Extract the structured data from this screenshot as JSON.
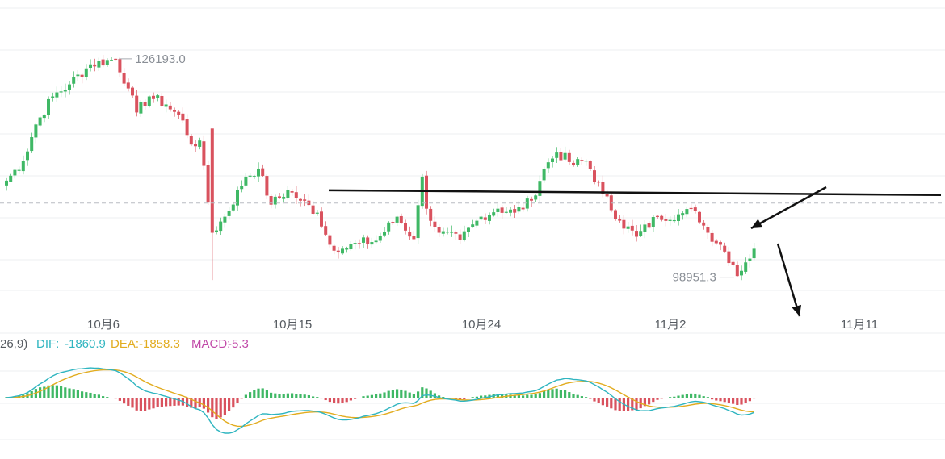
{
  "chart_data": [
    {
      "type": "candlestick",
      "title": "",
      "x_tick_labels": [
        "10月6",
        "10月15",
        "10月24",
        "11月2",
        "11月11"
      ],
      "price_range": [
        96000,
        129500
      ],
      "annotations": {
        "high_value": "126193.0",
        "low_value": "98951.3",
        "reference_price": 108200,
        "support_line": {
          "from_price": 109800,
          "to_price": 109200
        },
        "arrows": [
          "pointing to support line",
          "pointing down"
        ]
      },
      "colors": {
        "up": "#3fb865",
        "down": "#d9525e",
        "line": "#111111",
        "guide": "#b8bcc2"
      },
      "waypoints": [
        [
          0,
          111000
        ],
        [
          4,
          113500
        ],
        [
          7,
          118000
        ],
        [
          11,
          121500
        ],
        [
          15,
          123000
        ],
        [
          20,
          125500
        ],
        [
          26,
          126193
        ],
        [
          29,
          122500
        ],
        [
          31,
          119500
        ],
        [
          34,
          121500
        ],
        [
          38,
          120500
        ],
        [
          42,
          118500
        ],
        [
          44,
          115500
        ],
        [
          46,
          116000
        ],
        [
          49,
          104500
        ],
        [
          52,
          106500
        ],
        [
          57,
          111500
        ],
        [
          60,
          112500
        ],
        [
          63,
          108000
        ],
        [
          67,
          109800
        ],
        [
          70,
          108500
        ],
        [
          74,
          107000
        ],
        [
          77,
          103000
        ],
        [
          80,
          102500
        ],
        [
          84,
          103200
        ],
        [
          88,
          103500
        ],
        [
          93,
          106500
        ],
        [
          97,
          103700
        ],
        [
          99,
          111500
        ],
        [
          100,
          107500
        ],
        [
          103,
          104500
        ],
        [
          108,
          103600
        ],
        [
          113,
          106500
        ],
        [
          117,
          107500
        ],
        [
          121,
          107000
        ],
        [
          125,
          108500
        ],
        [
          128,
          112500
        ],
        [
          131,
          114500
        ],
        [
          135,
          113000
        ],
        [
          138,
          113500
        ],
        [
          142,
          109300
        ],
        [
          146,
          106000
        ],
        [
          150,
          104000
        ],
        [
          155,
          106500
        ],
        [
          160,
          106800
        ],
        [
          164,
          107200
        ],
        [
          167,
          104500
        ],
        [
          170,
          103000
        ],
        [
          173,
          100500
        ],
        [
          174,
          99100
        ],
        [
          176,
          100800
        ],
        [
          178,
          102500
        ]
      ]
    },
    {
      "type": "macd",
      "params_label": "26,9)",
      "dif_label": "DIF:",
      "dif_value": "-1860.9",
      "dea_label": "DEA:",
      "dea_value": "-1858.3",
      "macd_label": "MACD:",
      "macd_value": "-5.3",
      "colors": {
        "dif": "#2fb5c0",
        "dea": "#e2ac1f",
        "hist_up": "#3fb865",
        "hist_down": "#d9525e",
        "macd_text": "#c149a8"
      }
    }
  ]
}
